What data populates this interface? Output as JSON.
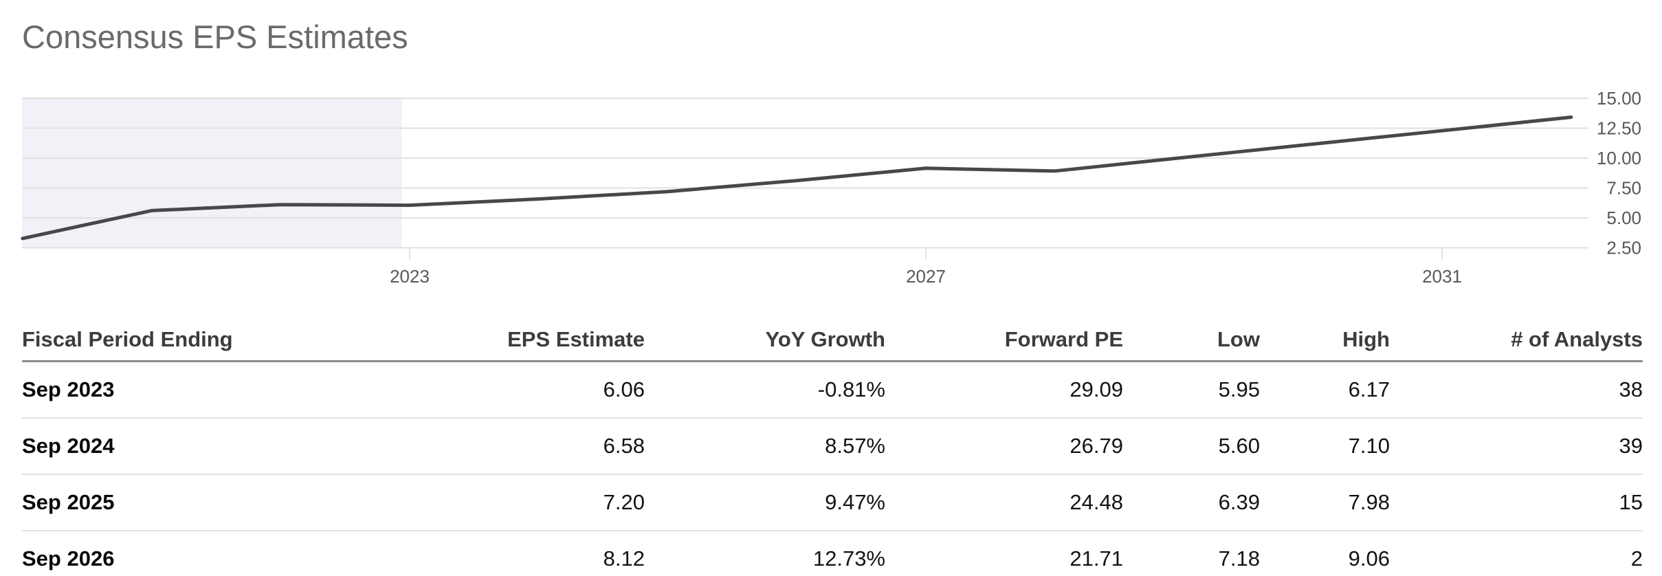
{
  "header": {
    "title": "Consensus EPS Estimates"
  },
  "colors": {
    "line": "#48484a",
    "past_region_fill": "#f1f2f7",
    "gridline": "#e1e1e3",
    "axis_text": "#58585c",
    "title_text": "#69696e",
    "header_text": "#3c3c40",
    "header_rule": "#8c8c90",
    "row_rule": "#e2e2e4",
    "cell_text": "#131316"
  },
  "chart_data": {
    "type": "line",
    "title": "Consensus EPS Estimates",
    "x": [
      2020,
      2021,
      2022,
      2023,
      2024,
      2025,
      2026,
      2027,
      2028,
      2029,
      2030,
      2031,
      2032
    ],
    "values": [
      3.28,
      5.61,
      6.11,
      6.06,
      6.58,
      7.2,
      8.12,
      9.15,
      8.92,
      10.05,
      11.17,
      12.29,
      13.42
    ],
    "x_ticks": [
      2023,
      2027,
      2031
    ],
    "x_tick_labels": [
      "2023",
      "2027",
      "2031"
    ],
    "y_ticks": [
      15.0,
      12.5,
      10.0,
      7.5,
      5.0,
      2.5
    ],
    "y_tick_labels": [
      "15.00",
      "12.50",
      "10.00",
      "7.50",
      "5.00",
      "2.50"
    ],
    "ylim": [
      2.5,
      15
    ],
    "grid": "horizontal",
    "y_axis_side": "right",
    "legend": "none",
    "past_shade_until_year": 2022.94
  },
  "table": {
    "columns": [
      "Fiscal Period Ending",
      "EPS Estimate",
      "YoY Growth",
      "Forward PE",
      "Low",
      "High",
      "# of Analysts"
    ],
    "rows": [
      {
        "period": "Sep 2023",
        "eps": "6.06",
        "yoy": "-0.81%",
        "forward_pe": "29.09",
        "low": "5.95",
        "high": "6.17",
        "analysts": "38"
      },
      {
        "period": "Sep 2024",
        "eps": "6.58",
        "yoy": "8.57%",
        "forward_pe": "26.79",
        "low": "5.60",
        "high": "7.10",
        "analysts": "39"
      },
      {
        "period": "Sep 2025",
        "eps": "7.20",
        "yoy": "9.47%",
        "forward_pe": "24.48",
        "low": "6.39",
        "high": "7.98",
        "analysts": "15"
      },
      {
        "period": "Sep 2026",
        "eps": "8.12",
        "yoy": "12.73%",
        "forward_pe": "21.71",
        "low": "7.18",
        "high": "9.06",
        "analysts": "2"
      }
    ]
  }
}
